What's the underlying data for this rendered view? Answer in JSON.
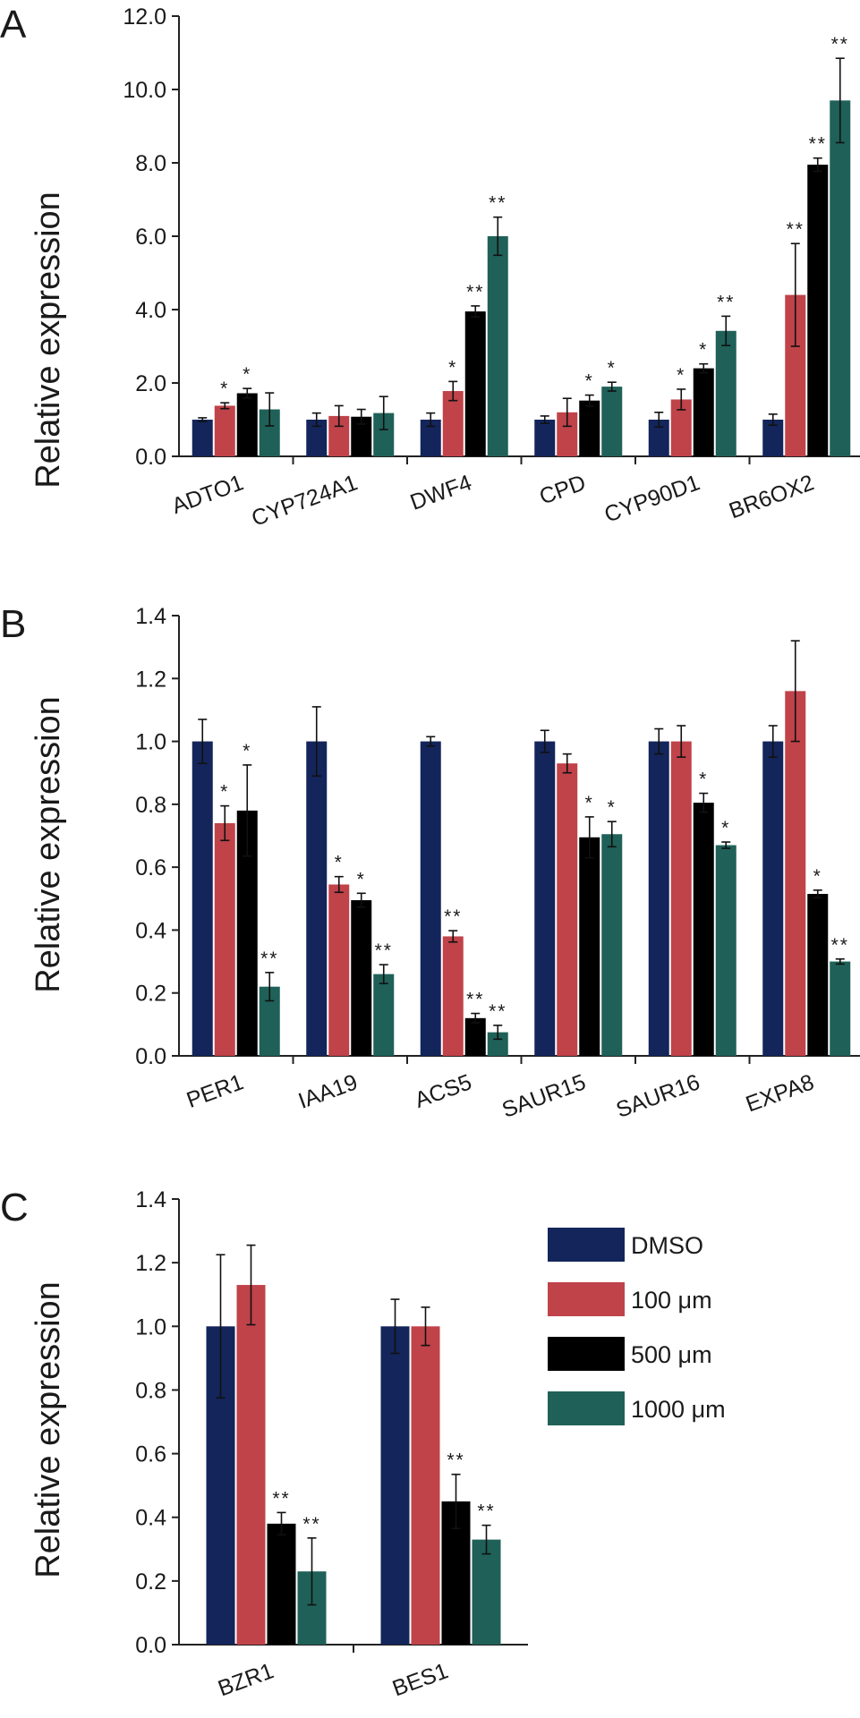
{
  "series": [
    {
      "name": "DMSO",
      "color": "#13255a"
    },
    {
      "name": "100 μm",
      "color": "#c0434a"
    },
    {
      "name": "500 μm",
      "color": "#000000"
    },
    {
      "name": "1000 μm",
      "color": "#1f6158"
    }
  ],
  "chart_data": [
    {
      "type": "bar",
      "panel": "A",
      "ylabel": "Relative expression",
      "ylim": [
        0,
        12
      ],
      "yticks": [
        "0.0",
        "2.0",
        "4.0",
        "6.0",
        "8.0",
        "10.0",
        "12.0"
      ],
      "categories": [
        "ADTO1",
        "CYP724A1",
        "DWF4",
        "CPD",
        "CYP90D1",
        "BR6OX2"
      ],
      "series": [
        {
          "name": "DMSO",
          "values": [
            1.0,
            1.0,
            1.0,
            1.0,
            1.0,
            1.0
          ],
          "errors": [
            0.05,
            0.18,
            0.18,
            0.1,
            0.2,
            0.15
          ],
          "sig": [
            "",
            "",
            "",
            "",
            "",
            ""
          ]
        },
        {
          "name": "100 μm",
          "values": [
            1.38,
            1.1,
            1.78,
            1.2,
            1.55,
            4.4
          ],
          "errors": [
            0.08,
            0.28,
            0.26,
            0.38,
            0.28,
            1.4
          ],
          "sig": [
            "*",
            "",
            "*",
            "",
            "*",
            "**"
          ]
        },
        {
          "name": "500 μm",
          "values": [
            1.72,
            1.08,
            3.95,
            1.52,
            2.4,
            7.95
          ],
          "errors": [
            0.13,
            0.2,
            0.15,
            0.15,
            0.12,
            0.18
          ],
          "sig": [
            "*",
            "",
            "**",
            "*",
            "*",
            "**"
          ]
        },
        {
          "name": "1000 μm",
          "values": [
            1.28,
            1.18,
            6.0,
            1.9,
            3.42,
            9.7
          ],
          "errors": [
            0.45,
            0.45,
            0.52,
            0.12,
            0.4,
            1.15
          ],
          "sig": [
            "",
            "",
            "**",
            "*",
            "**",
            "**"
          ]
        }
      ]
    },
    {
      "type": "bar",
      "panel": "B",
      "ylabel": "Relative expression",
      "ylim": [
        0,
        1.4
      ],
      "yticks": [
        "0.0",
        "0.2",
        "0.4",
        "0.6",
        "0.8",
        "1.0",
        "1.2",
        "1.4"
      ],
      "categories": [
        "PER1",
        "IAA19",
        "ACS5",
        "SAUR15",
        "SAUR16",
        "EXPA8"
      ],
      "series": [
        {
          "name": "DMSO",
          "values": [
            1.0,
            1.0,
            1.0,
            1.0,
            1.0,
            1.0
          ],
          "errors": [
            0.07,
            0.11,
            0.015,
            0.035,
            0.04,
            0.05
          ],
          "sig": [
            "",
            "",
            "",
            "",
            "",
            ""
          ]
        },
        {
          "name": "100 μm",
          "values": [
            0.74,
            0.545,
            0.38,
            0.93,
            1.0,
            1.16
          ],
          "errors": [
            0.055,
            0.025,
            0.018,
            0.03,
            0.05,
            0.16
          ],
          "sig": [
            "*",
            "*",
            "**",
            "",
            "",
            ""
          ]
        },
        {
          "name": "500 μm",
          "values": [
            0.78,
            0.495,
            0.12,
            0.695,
            0.805,
            0.515
          ],
          "errors": [
            0.145,
            0.022,
            0.015,
            0.065,
            0.03,
            0.012
          ],
          "sig": [
            "*",
            "*",
            "**",
            "*",
            "*",
            "*"
          ]
        },
        {
          "name": "1000 μm",
          "values": [
            0.22,
            0.26,
            0.075,
            0.705,
            0.67,
            0.3
          ],
          "errors": [
            0.045,
            0.03,
            0.022,
            0.04,
            0.01,
            0.008
          ],
          "sig": [
            "**",
            "**",
            "**",
            "*",
            "*",
            "**"
          ]
        }
      ]
    },
    {
      "type": "bar",
      "panel": "C",
      "ylabel": "Relative expression",
      "ylim": [
        0,
        1.4
      ],
      "yticks": [
        "0.0",
        "0.2",
        "0.4",
        "0.6",
        "0.8",
        "1.0",
        "1.2",
        "1.4"
      ],
      "categories": [
        "BZR1",
        "BES1"
      ],
      "series": [
        {
          "name": "DMSO",
          "values": [
            1.0,
            1.0
          ],
          "errors": [
            0.225,
            0.085
          ],
          "sig": [
            "",
            ""
          ]
        },
        {
          "name": "100 μm",
          "values": [
            1.13,
            1.0
          ],
          "errors": [
            0.125,
            0.06
          ],
          "sig": [
            "",
            ""
          ]
        },
        {
          "name": "500 μm",
          "values": [
            0.38,
            0.45
          ],
          "errors": [
            0.035,
            0.085
          ],
          "sig": [
            "**",
            "**"
          ]
        },
        {
          "name": "1000 μm",
          "values": [
            0.23,
            0.33
          ],
          "errors": [
            0.105,
            0.045
          ],
          "sig": [
            "**",
            "**"
          ]
        }
      ],
      "legend": [
        "DMSO",
        "100 μm",
        "500 μm",
        "1000 μm"
      ]
    }
  ]
}
